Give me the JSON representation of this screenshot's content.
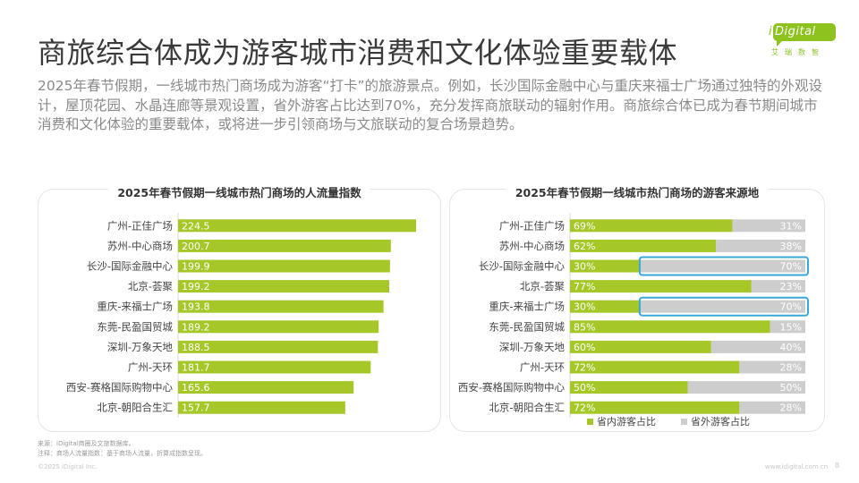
{
  "title": "商旅综合体成为游客城市消费和文化体验重要载体",
  "logo": {
    "brand_i": "i",
    "brand": "Digital",
    "sub": "艾瑞数智"
  },
  "intro": "2025年春节假期，一线城市热门商场成为游客“打卡”的旅游景点。例如，长沙国际金融中心与重庆来福士广场通过独特的外观设计，屋顶花园、水晶连廊等景观设置，省外游客占比达到70%，充分发挥商旅联动的辐射作用。商旅综合体已成为春节期间城市消费和文化体验的重要载体，或将进一步引领商场与文旅联动的复合场景趋势。",
  "footnotes": {
    "source": "来源：iDigital商圈及文旅数据库。",
    "note": "注释：商场人流量指数：基于商场人流量，折算成指数呈现。",
    "copyright": "©2025 iDigital Inc.",
    "site": "www.idigital.com.cn",
    "page": "8"
  },
  "colors": {
    "green": "#a5c828",
    "gray": "#cdcdcd",
    "highlight": "#38a8d8"
  },
  "chart_data": [
    {
      "type": "bar",
      "orientation": "horizontal",
      "title": "2025年春节假期一线城市热门商场的人流量指数",
      "categories": [
        "广州-正佳广场",
        "苏州-中心商场",
        "长沙-国际金融中心",
        "北京-荟聚",
        "重庆-来福士广场",
        "东莞-民盈国贸城",
        "深圳-万象天地",
        "广州-天环",
        "西安-赛格国际购物中心",
        "北京-朝阳合生汇"
      ],
      "values": [
        224.5,
        200.7,
        199.9,
        199.2,
        193.8,
        189.2,
        188.5,
        181.7,
        165.6,
        157.7
      ],
      "value_labels": [
        "224.5",
        "200.7",
        "199.9",
        "199.2",
        "193.8",
        "189.2",
        "188.5",
        "181.7",
        "165.6",
        "157.7"
      ],
      "xlim": [
        0,
        224.5
      ]
    },
    {
      "type": "bar",
      "orientation": "horizontal",
      "stacked": "percent",
      "title": "2025年春节假期一线城市热门商场的游客来源地",
      "categories": [
        "广州-正佳广场",
        "苏州-中心商场",
        "长沙-国际金融中心",
        "北京-荟聚",
        "重庆-来福士广场",
        "东莞-民盈国贸城",
        "深圳-万象天地",
        "广州-天环",
        "西安-赛格国际购物中心",
        "北京-朝阳合生汇"
      ],
      "series": [
        {
          "name": "省内游客占比",
          "values": [
            69,
            62,
            30,
            77,
            30,
            85,
            60,
            72,
            50,
            72
          ],
          "labels": [
            "69%",
            "62%",
            "30%",
            "77%",
            "30%",
            "85%",
            "60%",
            "72%",
            "50%",
            "72%"
          ]
        },
        {
          "name": "省外游客占比",
          "values": [
            31,
            38,
            70,
            23,
            70,
            15,
            40,
            28,
            50,
            28
          ],
          "labels": [
            "31%",
            "38%",
            "70%",
            "23%",
            "70%",
            "15%",
            "40%",
            "28%",
            "50%",
            "28%"
          ]
        }
      ],
      "highlighted_categories": [
        "长沙-国际金融中心",
        "重庆-来福士广场"
      ],
      "legend": "bottom"
    }
  ]
}
